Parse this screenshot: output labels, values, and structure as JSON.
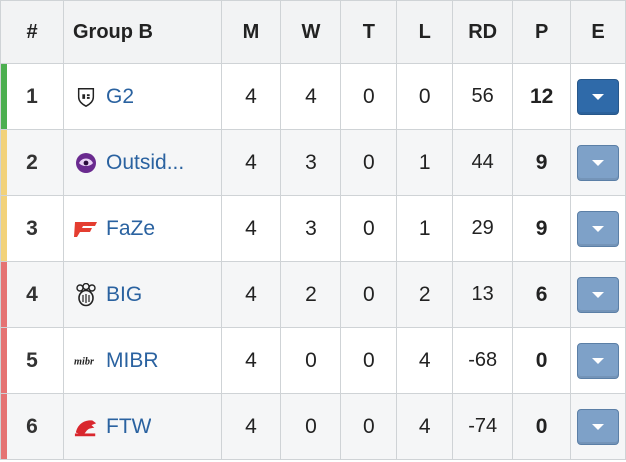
{
  "header": {
    "rank": "#",
    "group": "Group B",
    "m": "M",
    "w": "W",
    "t": "T",
    "l": "L",
    "rd": "RD",
    "p": "P",
    "e": "E"
  },
  "colors": {
    "qualified": "#4caf50",
    "advancing": "#f2d27a",
    "eliminated": "#e57373",
    "team_link": "#2a62a0",
    "button": "#7ea1c8",
    "button_active": "#2f6aa9"
  },
  "rows": [
    {
      "rank": "1",
      "team": "G2",
      "logo": "g2-logo-icon",
      "m": "4",
      "w": "4",
      "t": "0",
      "l": "0",
      "rd": "56",
      "p": "12",
      "status": "qualified",
      "expanded": true
    },
    {
      "rank": "2",
      "team": "Outsid...",
      "logo": "outsiders-logo-icon",
      "m": "4",
      "w": "3",
      "t": "0",
      "l": "1",
      "rd": "44",
      "p": "9",
      "status": "advancing",
      "expanded": false
    },
    {
      "rank": "3",
      "team": "FaZe",
      "logo": "faze-logo-icon",
      "m": "4",
      "w": "3",
      "t": "0",
      "l": "1",
      "rd": "29",
      "p": "9",
      "status": "advancing",
      "expanded": false
    },
    {
      "rank": "4",
      "team": "BIG",
      "logo": "big-logo-icon",
      "m": "4",
      "w": "2",
      "t": "0",
      "l": "2",
      "rd": "13",
      "p": "6",
      "status": "eliminated",
      "expanded": false
    },
    {
      "rank": "5",
      "team": "MIBR",
      "logo": "mibr-logo-icon",
      "m": "4",
      "w": "0",
      "t": "0",
      "l": "4",
      "rd": "-68",
      "p": "0",
      "status": "eliminated",
      "expanded": false
    },
    {
      "rank": "6",
      "team": "FTW",
      "logo": "ftw-logo-icon",
      "m": "4",
      "w": "0",
      "t": "0",
      "l": "4",
      "rd": "-74",
      "p": "0",
      "status": "eliminated",
      "expanded": false
    }
  ]
}
